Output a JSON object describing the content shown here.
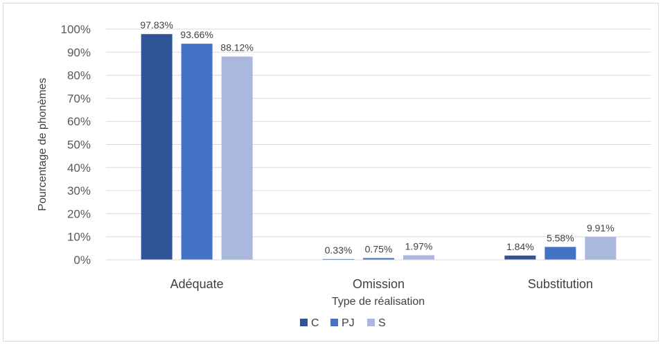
{
  "chart_data": {
    "type": "bar",
    "xlabel": "Type de réalisation",
    "ylabel": "Pourcentage de phonèmes",
    "categories": [
      "Adéquate",
      "Omission",
      "Substitution"
    ],
    "ylim": [
      0,
      100
    ],
    "yticks": [
      0,
      10,
      20,
      30,
      40,
      50,
      60,
      70,
      80,
      90,
      100
    ],
    "ytick_labels": [
      "0%",
      "10%",
      "20%",
      "30%",
      "40%",
      "50%",
      "60%",
      "70%",
      "80%",
      "90%",
      "100%"
    ],
    "grid": true,
    "legend_position": "bottom",
    "series": [
      {
        "name": "C",
        "color": "#2f5597",
        "values": [
          97.83,
          0.33,
          1.84
        ],
        "labels": [
          "97.83%",
          "0.33%",
          "1.84%"
        ]
      },
      {
        "name": "PJ",
        "color": "#4472c4",
        "values": [
          93.66,
          0.75,
          5.58
        ],
        "labels": [
          "93.66%",
          "0.75%",
          "5.58%"
        ]
      },
      {
        "name": "S",
        "color": "#a9b8dc",
        "values": [
          88.12,
          1.97,
          9.91
        ],
        "labels": [
          "88.12%",
          "1.97%",
          "9.91%"
        ]
      }
    ]
  }
}
